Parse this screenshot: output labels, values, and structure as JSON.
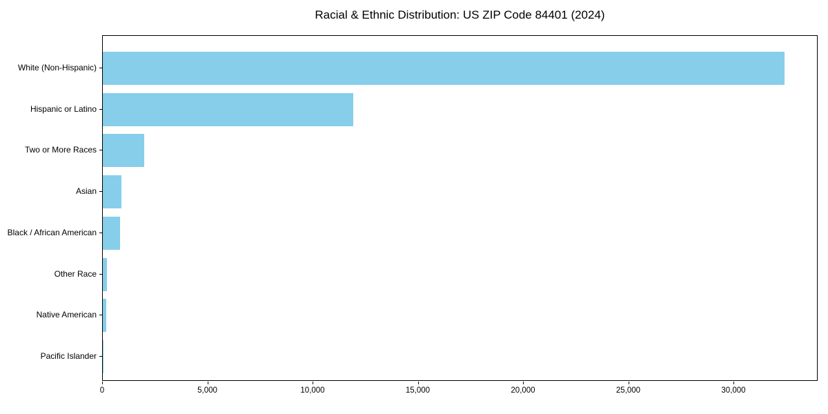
{
  "title": "Racial & Ethnic Distribution: US ZIP Code 84401 (2024)",
  "chart_data": {
    "type": "bar",
    "orientation": "horizontal",
    "title": "Racial & Ethnic Distribution: US ZIP Code 84401 (2024)",
    "xlabel": "",
    "ylabel": "",
    "categories": [
      "White (Non-Hispanic)",
      "Hispanic or Latino",
      "Two or More Races",
      "Asian",
      "Black / African American",
      "Other Race",
      "Native American",
      "Pacific Islander"
    ],
    "values": [
      32400,
      11900,
      1970,
      890,
      820,
      200,
      160,
      40
    ],
    "xlim": [
      0,
      34000
    ],
    "xticks": [
      0,
      5000,
      10000,
      15000,
      20000,
      25000,
      30000
    ],
    "xtick_labels": [
      "0",
      "5,000",
      "10,000",
      "15,000",
      "20,000",
      "25,000",
      "30,000"
    ],
    "bar_color": "#87CEEB",
    "spine_color": "#000000",
    "text_color": "#000000",
    "grid": false,
    "legend": null
  }
}
